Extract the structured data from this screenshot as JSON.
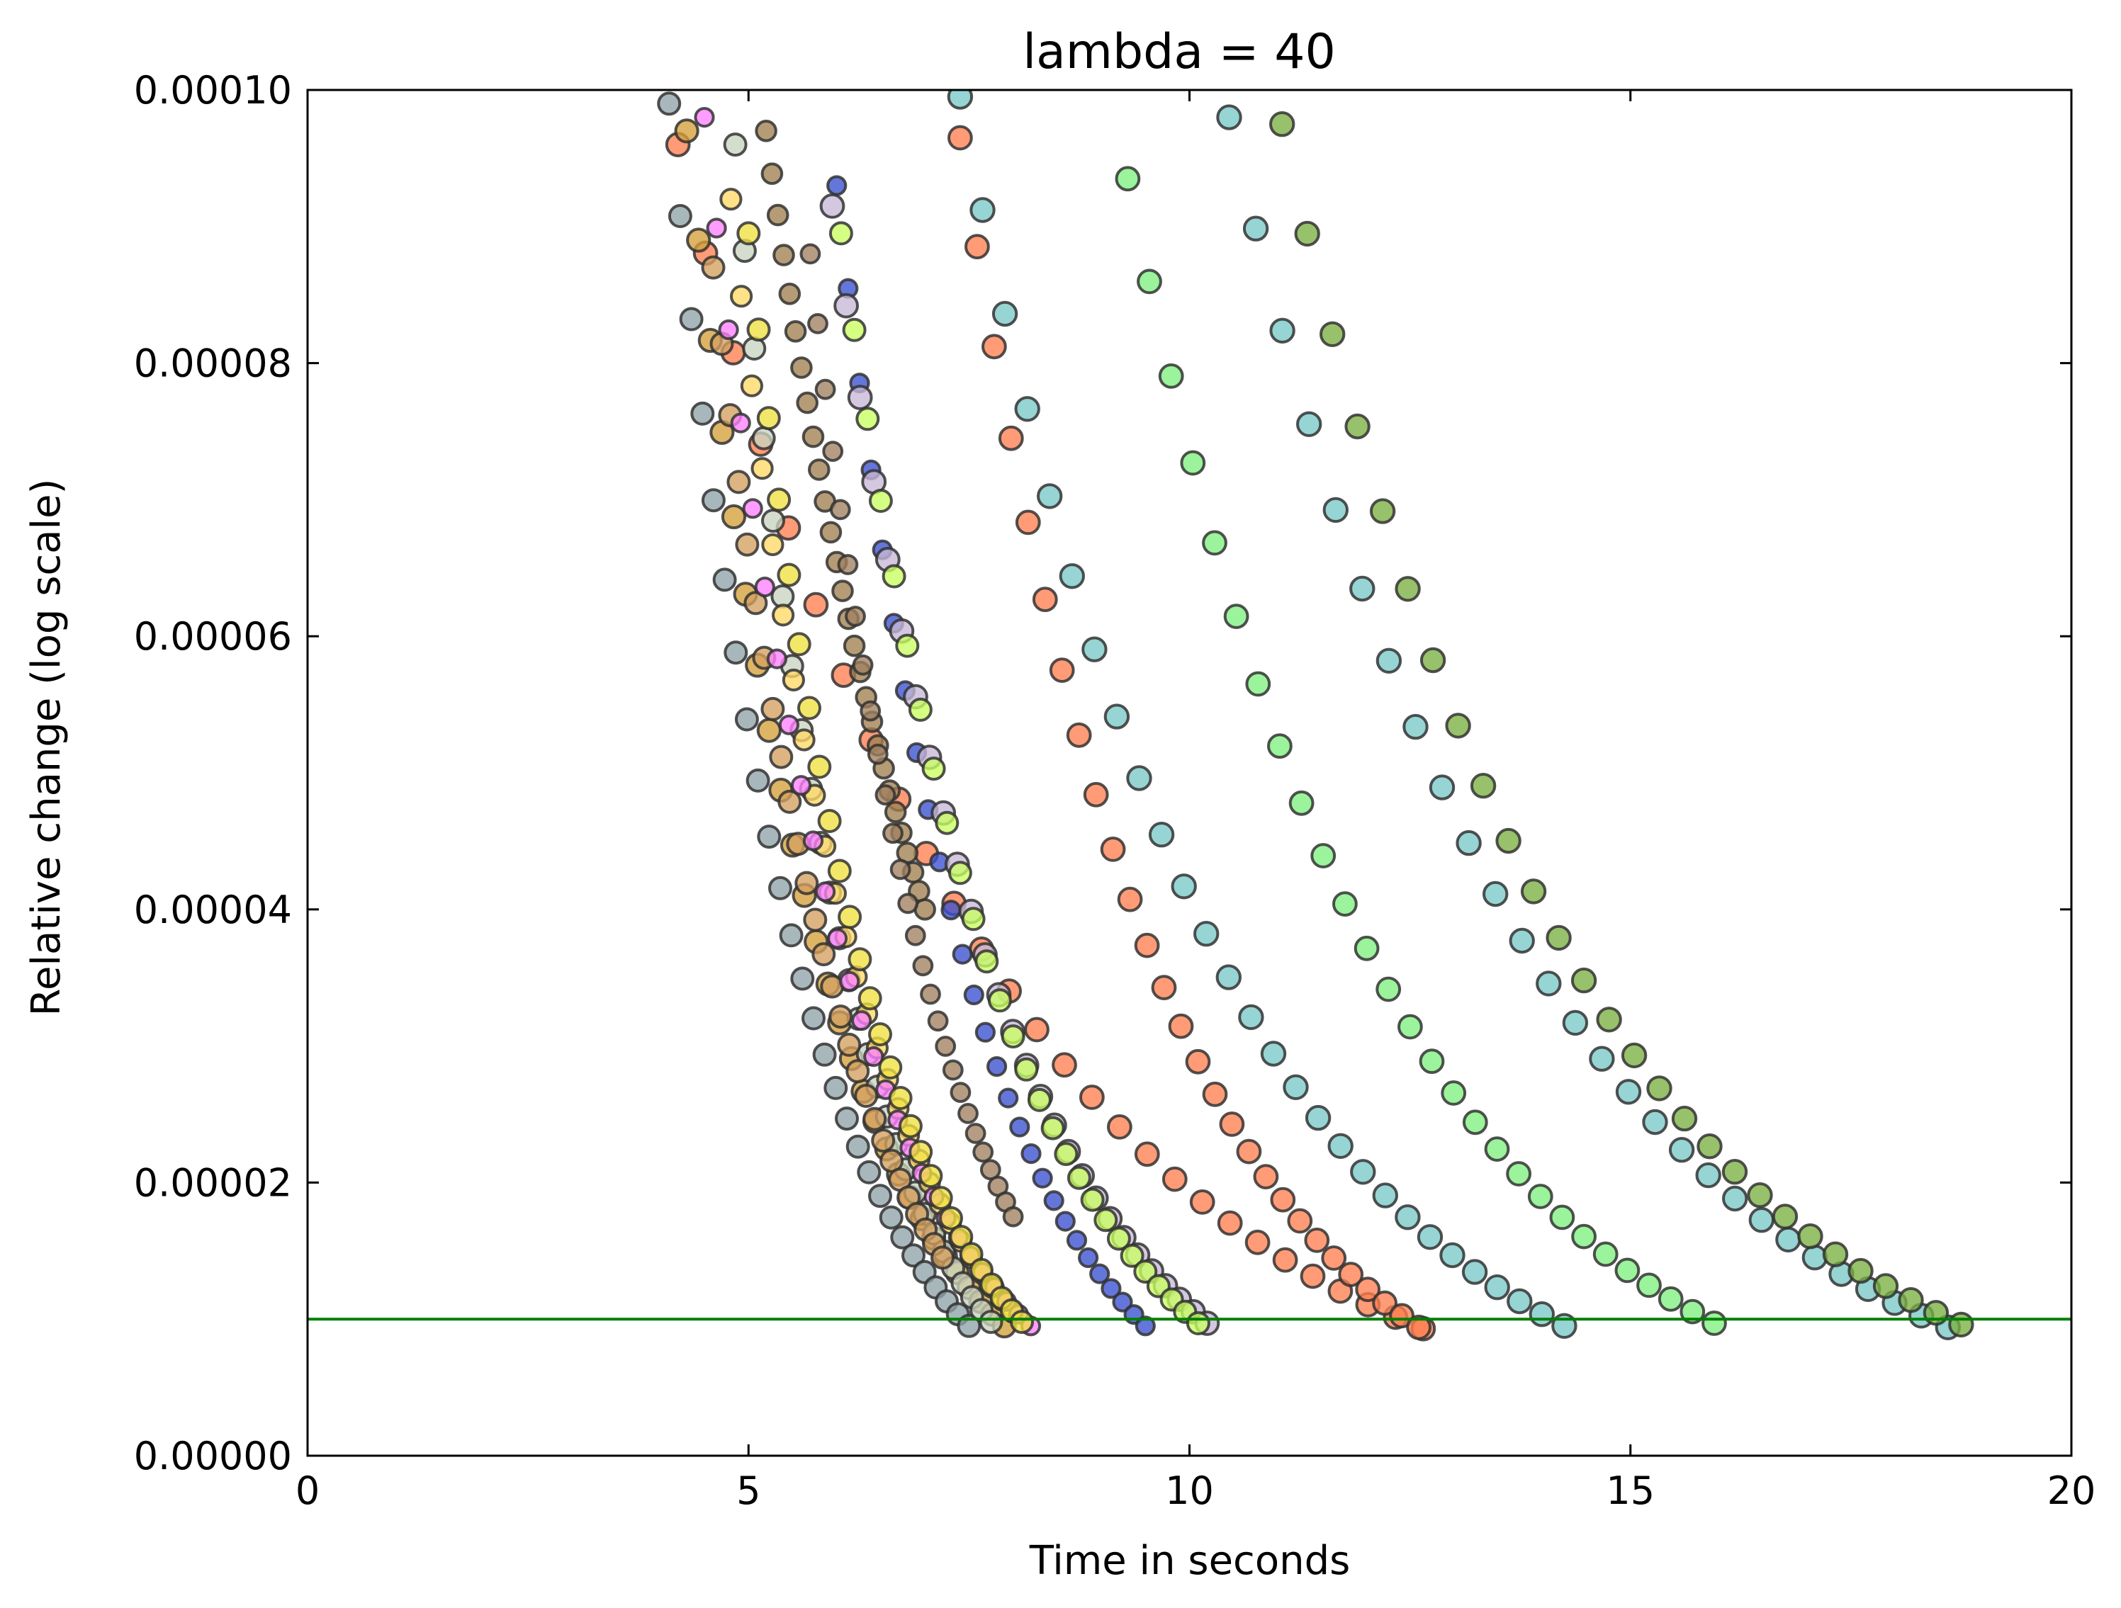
{
  "chart_data": {
    "type": "scatter",
    "title": "lambda = 40",
    "xlabel": "Time in seconds",
    "ylabel": "Relative change (log scale)",
    "xlim": [
      0,
      20
    ],
    "ylim": [
      0,
      0.0001
    ],
    "xticks": [
      0,
      5,
      10,
      15,
      20
    ],
    "xtick_labels": [
      "0",
      "5",
      "10",
      "15",
      "20"
    ],
    "yticks": [
      0,
      2e-05,
      4e-05,
      6e-05,
      8e-05,
      0.0001
    ],
    "ytick_labels": [
      "0.00000",
      "0.00002",
      "0.00004",
      "0.00006",
      "0.00008",
      "0.00010"
    ],
    "grid": false,
    "threshold": {
      "y": 1e-05,
      "color": "#008000"
    },
    "series": [
      {
        "color": "#ff7f50",
        "size": 1.15,
        "x": [
          4.2,
          10.5,
          12.65
        ],
        "y": [
          9.6e-05,
          2.15e-05,
          9.3e-06
        ]
      },
      {
        "color": "#8fa3a8",
        "size": 1.0,
        "x": [
          4.1,
          7.5
        ],
        "y": [
          9.9e-05,
          9.5e-06
        ]
      },
      {
        "color": "#d4a03a",
        "size": 1.1,
        "x": [
          4.3,
          7.9
        ],
        "y": [
          9.7e-05,
          9.5e-06
        ]
      },
      {
        "color": "#c9d4c0",
        "size": 1.0,
        "x": [
          4.85,
          7.75
        ],
        "y": [
          9.6e-05,
          9.8e-06
        ]
      },
      {
        "color": "#d4a060",
        "size": 1.0,
        "x": [
          4.6,
          7.2
        ],
        "y": [
          8.7e-05,
          1.45e-05
        ]
      },
      {
        "color": "#ffd966",
        "size": 0.85,
        "x": [
          4.8,
          8.0
        ],
        "y": [
          9.2e-05,
          1.05e-05
        ]
      },
      {
        "color": "#ff80ff",
        "size": 0.6,
        "x": [
          4.5,
          8.2
        ],
        "y": [
          9.8e-05,
          9.5e-06
        ]
      },
      {
        "color": "#f0e040",
        "size": 1.0,
        "x": [
          5.0,
          8.1
        ],
        "y": [
          8.95e-05,
          9.8e-06
        ]
      },
      {
        "color": "#a08050",
        "size": 0.8,
        "x": [
          5.2,
          7.0
        ],
        "y": [
          9.7e-05,
          4e-05
        ]
      },
      {
        "color": "#3a50d0",
        "size": 0.6,
        "x": [
          6.0,
          9.5
        ],
        "y": [
          9.3e-05,
          9.5e-06
        ]
      },
      {
        "color": "#a08060",
        "size": 0.65,
        "x": [
          5.7,
          8.0
        ],
        "y": [
          8.8e-05,
          1.75e-05
        ]
      },
      {
        "color": "#c8b8d8",
        "size": 1.15,
        "x": [
          5.95,
          10.2
        ],
        "y": [
          9.15e-05,
          9.7e-06
        ]
      },
      {
        "color": "#c8ff60",
        "size": 1.0,
        "x": [
          6.05,
          10.1
        ],
        "y": [
          8.95e-05,
          9.7e-06
        ]
      },
      {
        "color": "#ff7f50",
        "size": 1.15,
        "x": [
          7.4,
          12.6
        ],
        "y": [
          9.65e-05,
          9.4e-06
        ]
      },
      {
        "color": "#7ac8c8",
        "size": 1.2,
        "x": [
          7.4,
          14.25
        ],
        "y": [
          9.95e-05,
          9.5e-06
        ]
      },
      {
        "color": "#7ff07f",
        "size": 1.15,
        "x": [
          9.3,
          15.95
        ],
        "y": [
          9.35e-05,
          9.7e-06
        ]
      },
      {
        "color": "#7ac8c8",
        "size": 1.2,
        "x": [
          10.45,
          18.6
        ],
        "y": [
          9.8e-05,
          9.4e-06
        ]
      },
      {
        "color": "#7ab040",
        "size": 1.2,
        "x": [
          11.05,
          18.75
        ],
        "y": [
          9.75e-05,
          9.6e-06
        ]
      }
    ]
  }
}
